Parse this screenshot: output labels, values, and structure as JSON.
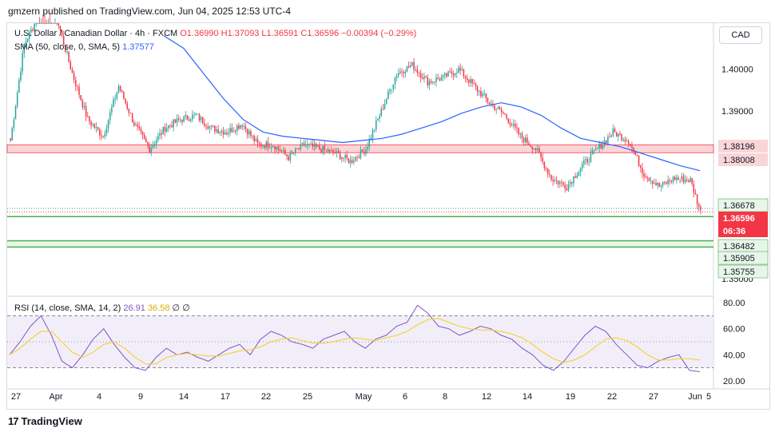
{
  "header": {
    "published": "gmzern published on TradingView.com, Jun 04, 2025 12:53 UTC-4"
  },
  "legend": {
    "symbol": "U.S. Dollar / Canadian Dollar · 4h · FXCM",
    "open": "O1.36990",
    "high": "H1.37093",
    "low": "L1.36591",
    "close": "C1.36596",
    "change": "−0.00394 (−0.29%)",
    "sma_label": "SMA (50, close, 0, SMA, 5)",
    "sma_value": "1.37577",
    "rsi_label": "RSI (14, close, SMA, 14, 2)",
    "rsi_value": "26.91",
    "rsi_ma_value": "36.58",
    "rsi_extra1": "∅",
    "rsi_extra2": "∅"
  },
  "currency_button": "CAD",
  "footer": {
    "logo_mark": "17",
    "logo_text": "TradingView"
  },
  "colors": {
    "up": "#26a69a",
    "down": "#f23645",
    "sma": "#2962ff",
    "rsi": "#7e57c2",
    "rsi_ma": "#f5d33b",
    "resistance_zone": "#f9d5d8",
    "support_line": "#4caf50"
  },
  "chart_data": [
    {
      "type": "candlestick",
      "title": "U.S. Dollar / Canadian Dollar · 4h · FXCM",
      "y_axis_ticks": [
        "1.40000",
        "1.39000",
        "1.35000"
      ],
      "ylim": [
        1.346,
        1.411
      ],
      "x_tick_labels": [
        "27",
        "Apr",
        "4",
        "9",
        "14",
        "17",
        "22",
        "25",
        "May",
        "6",
        "8",
        "12",
        "14",
        "19",
        "22",
        "27",
        "Jun",
        "5"
      ],
      "price_labels": [
        {
          "text": "1.38196",
          "style": "resistance"
        },
        {
          "text": "1.38008",
          "style": "resistance"
        },
        {
          "text": "1.36678",
          "style": "support"
        },
        {
          "text": "1.36596",
          "style": "last"
        },
        {
          "text": "06:36",
          "style": "last"
        },
        {
          "text": "1.36482",
          "style": "support"
        },
        {
          "text": "1.35905",
          "style": "support"
        },
        {
          "text": "1.35755",
          "style": "support"
        }
      ],
      "resistance_zone": [
        1.38008,
        1.38196
      ],
      "support_lines": [
        1.36482,
        1.35905,
        1.35755
      ],
      "dotted_levels": [
        1.36678,
        1.36596
      ],
      "anchor_prices": [
        [
          0,
          1.383
        ],
        [
          8,
          1.406
        ],
        [
          18,
          1.414
        ],
        [
          27,
          1.412
        ],
        [
          36,
          1.399
        ],
        [
          45,
          1.388
        ],
        [
          54,
          1.384
        ],
        [
          63,
          1.396
        ],
        [
          72,
          1.387
        ],
        [
          81,
          1.381
        ],
        [
          90,
          1.386
        ],
        [
          99,
          1.388
        ],
        [
          108,
          1.389
        ],
        [
          117,
          1.386
        ],
        [
          126,
          1.385
        ],
        [
          135,
          1.387
        ],
        [
          144,
          1.382
        ],
        [
          153,
          1.382
        ],
        [
          162,
          1.379
        ],
        [
          171,
          1.382
        ],
        [
          180,
          1.381
        ],
        [
          189,
          1.38
        ],
        [
          198,
          1.378
        ],
        [
          207,
          1.381
        ],
        [
          216,
          1.39
        ],
        [
          225,
          1.399
        ],
        [
          234,
          1.401
        ],
        [
          243,
          1.397
        ],
        [
          252,
          1.398
        ],
        [
          261,
          1.4
        ],
        [
          270,
          1.396
        ],
        [
          279,
          1.392
        ],
        [
          288,
          1.389
        ],
        [
          297,
          1.384
        ],
        [
          306,
          1.381
        ],
        [
          315,
          1.374
        ],
        [
          324,
          1.372
        ],
        [
          333,
          1.377
        ],
        [
          342,
          1.381
        ],
        [
          351,
          1.385
        ],
        [
          360,
          1.383
        ],
        [
          369,
          1.375
        ],
        [
          378,
          1.372
        ],
        [
          387,
          1.374
        ],
        [
          396,
          1.3735
        ],
        [
          402,
          1.366
        ]
      ],
      "sma": [
        [
          1.408,
          1.405,
          1.399,
          1.393,
          1.388,
          1.385,
          1.384,
          1.3835,
          1.383,
          1.3825,
          1.383,
          1.3835,
          1.3845,
          1.386,
          1.3875,
          1.3895,
          1.391,
          1.392,
          1.391,
          1.389,
          1.386,
          1.3835,
          1.3825,
          1.3815,
          1.38,
          1.3785,
          1.377,
          1.3758
        ]
      ]
    },
    {
      "type": "line",
      "title": "RSI (14, close, SMA, 14, 2)",
      "y_axis_ticks": [
        "80.00",
        "60.00",
        "40.00",
        "20.00"
      ],
      "ylim": [
        15,
        85
      ],
      "bands": [
        30,
        70
      ],
      "midline": 50,
      "series": [
        {
          "name": "RSI",
          "values": [
            40,
            50,
            62,
            70,
            55,
            35,
            30,
            40,
            52,
            60,
            48,
            38,
            30,
            28,
            38,
            45,
            40,
            42,
            38,
            35,
            40,
            45,
            48,
            40,
            52,
            58,
            55,
            50,
            48,
            45,
            52,
            55,
            58,
            50,
            45,
            52,
            55,
            62,
            65,
            78,
            72,
            62,
            60,
            55,
            58,
            62,
            60,
            55,
            52,
            45,
            40,
            32,
            28,
            35,
            45,
            55,
            62,
            58,
            48,
            40,
            32,
            30,
            35,
            38,
            40,
            28,
            27
          ]
        },
        {
          "name": "RSI-based MA",
          "values": [
            40,
            45,
            52,
            58,
            58,
            50,
            42,
            38,
            42,
            48,
            50,
            45,
            38,
            33,
            33,
            38,
            40,
            41,
            40,
            39,
            39,
            41,
            43,
            44,
            46,
            50,
            52,
            53,
            51,
            49,
            49,
            50,
            52,
            53,
            52,
            51,
            53,
            55,
            58,
            63,
            67,
            68,
            65,
            62,
            60,
            59,
            59,
            58,
            56,
            53,
            48,
            42,
            37,
            34,
            36,
            40,
            46,
            52,
            53,
            51,
            46,
            40,
            36,
            36,
            37,
            37,
            36
          ]
        }
      ]
    }
  ]
}
